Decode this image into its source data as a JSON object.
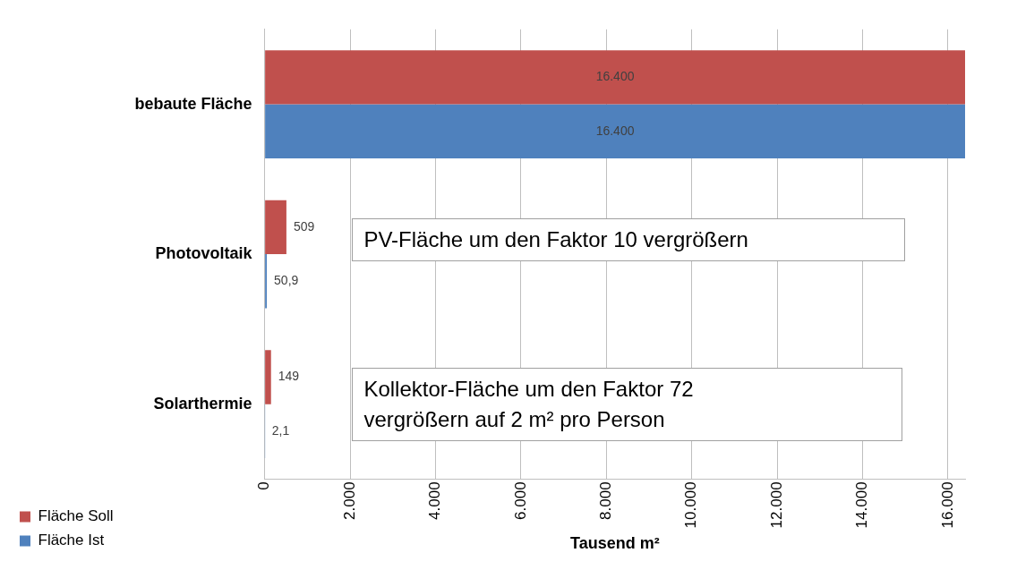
{
  "chart_data": {
    "type": "bar",
    "orientation": "horizontal",
    "xlabel": "Tausend m²",
    "categories": [
      "bebaute Fläche",
      "Photovoltaik",
      "Solarthermie"
    ],
    "series": [
      {
        "name": "Fläche Soll",
        "color": "#c0504d",
        "values": [
          16400,
          509,
          149
        ],
        "value_labels": [
          "16.400",
          "509",
          "149"
        ]
      },
      {
        "name": "Fläche Ist",
        "color": "#4f81bd",
        "values": [
          16400,
          50.9,
          2.1
        ],
        "value_labels": [
          "16.400",
          "50,9",
          "2,1"
        ]
      }
    ],
    "xlim": [
      0,
      16400
    ],
    "xticks": [
      {
        "value": 0,
        "label": "0"
      },
      {
        "value": 2000,
        "label": "2.000"
      },
      {
        "value": 4000,
        "label": "4.000"
      },
      {
        "value": 6000,
        "label": "6.000"
      },
      {
        "value": 8000,
        "label": "8.000"
      },
      {
        "value": 10000,
        "label": "10.000"
      },
      {
        "value": 12000,
        "label": "12.000"
      },
      {
        "value": 14000,
        "label": "14.000"
      },
      {
        "value": 16000,
        "label": "16.000"
      }
    ],
    "grid": "x",
    "legend": "bottom left",
    "annotations": [
      "PV-Fläche um den Faktor 10 vergrößern",
      "Kollektor-Fläche um den Faktor 72 vergrößern auf 2 m² pro Person"
    ]
  }
}
